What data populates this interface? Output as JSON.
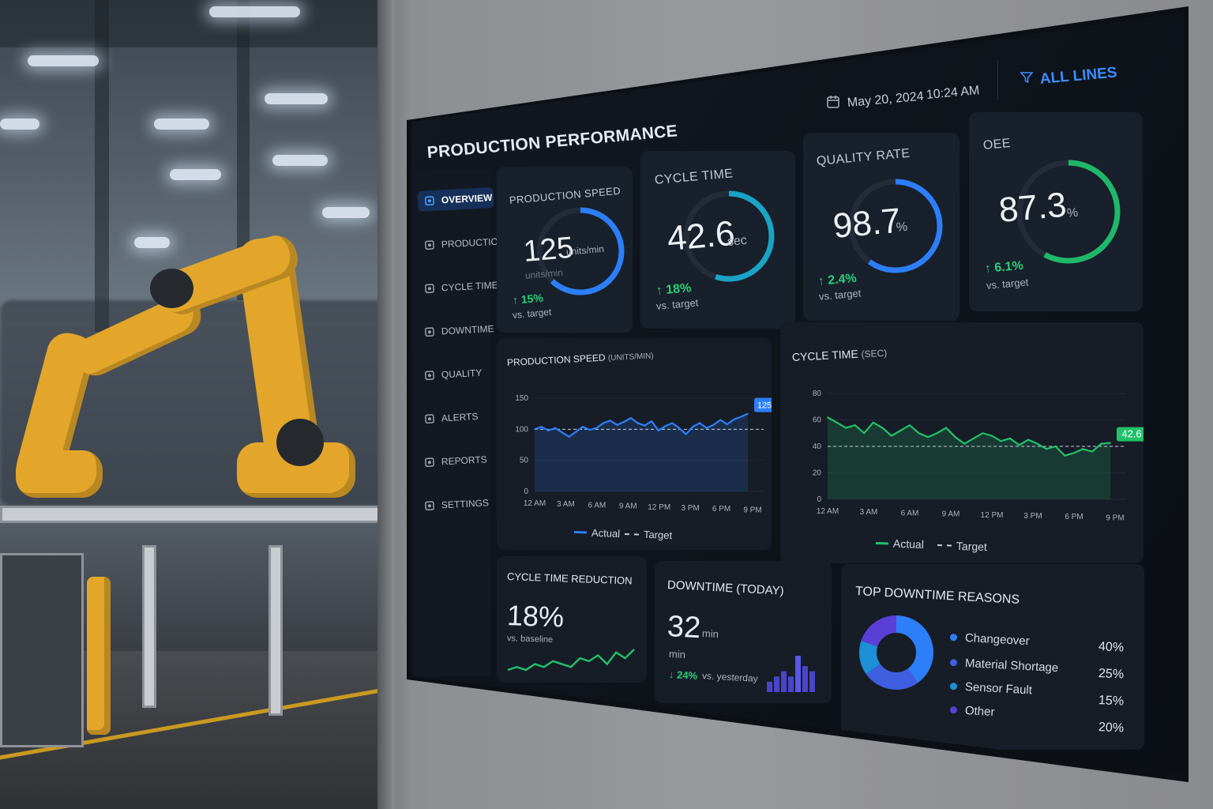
{
  "dashboard": {
    "title": "PRODUCTION PERFORMANCE",
    "date": "May 20, 2024",
    "time": "10:24 AM",
    "filter_label": "ALL LINES",
    "icons": {
      "calendar": "calendar-icon",
      "filter": "filter-icon"
    }
  },
  "sidebar": {
    "items": [
      {
        "label": "OVERVIEW",
        "icon": "grid-icon",
        "active": true
      },
      {
        "label": "PRODUCTION",
        "icon": "factory-icon",
        "active": false
      },
      {
        "label": "CYCLE TIME",
        "icon": "refresh-icon",
        "active": false
      },
      {
        "label": "DOWNTIME",
        "icon": "clock-icon",
        "active": false
      },
      {
        "label": "QUALITY",
        "icon": "shield-icon",
        "active": false
      },
      {
        "label": "ALERTS",
        "icon": "warning-icon",
        "active": false
      },
      {
        "label": "REPORTS",
        "icon": "report-icon",
        "active": false
      },
      {
        "label": "SETTINGS",
        "icon": "gear-icon",
        "active": false
      }
    ]
  },
  "kpis": [
    {
      "label": "PRODUCTION SPEED",
      "value": "125",
      "unit": "units/min",
      "unit_below": "units/min",
      "delta": "↑ 15%",
      "vs": "vs. target",
      "gauge_fraction": 0.62,
      "color": "#2d7ff9"
    },
    {
      "label": "CYCLE TIME",
      "value": "42.6",
      "unit": "sec",
      "delta": "↑ 18%",
      "vs": "vs. target",
      "gauge_fraction": 0.55,
      "color": "#1aa3c4"
    },
    {
      "label": "QUALITY RATE",
      "value": "98.7",
      "unit": "%",
      "delta": "↑ 2.4%",
      "vs": "vs. target",
      "gauge_fraction": 0.6,
      "color": "#2d7ff9"
    },
    {
      "label": "OEE",
      "value": "87.3",
      "unit": "%",
      "delta": "↑ 6.1%",
      "vs": "vs. target",
      "gauge_fraction": 0.58,
      "color": "#1fb86b"
    }
  ],
  "chart_data": [
    {
      "type": "line",
      "title": "PRODUCTION SPEED",
      "unit_label": "(UNITS/MIN)",
      "x_ticks": [
        "12 AM",
        "3 AM",
        "6 AM",
        "9 AM",
        "12 PM",
        "3 PM",
        "6 PM",
        "9 PM"
      ],
      "y_ticks": [
        0,
        50,
        100,
        150
      ],
      "ylim": [
        0,
        150
      ],
      "target": 100,
      "end_label": "125",
      "series": [
        {
          "name": "Actual",
          "color": "#2d7ff9",
          "values": [
            100,
            104,
            98,
            102,
            95,
            88,
            96,
            104,
            99,
            102,
            110,
            114,
            107,
            112,
            118,
            110,
            106,
            113,
            98,
            105,
            110,
            102,
            92,
            104,
            110,
            102,
            107,
            115,
            108,
            116,
            120,
            125
          ]
        }
      ],
      "legend": [
        "Actual",
        "Target"
      ],
      "legend_position": "bottom"
    },
    {
      "type": "line",
      "title": "CYCLE TIME",
      "unit_label": "(SEC)",
      "x_ticks": [
        "12 AM",
        "3 AM",
        "6 AM",
        "9 AM",
        "12 PM",
        "3 PM",
        "6 PM",
        "9 PM"
      ],
      "y_ticks": [
        0,
        20,
        40,
        60,
        80
      ],
      "ylim": [
        0,
        80
      ],
      "target": 40,
      "end_label": "42.6",
      "series": [
        {
          "name": "Actual",
          "color": "#22c16b",
          "values": [
            62,
            58,
            54,
            56,
            50,
            58,
            54,
            48,
            52,
            56,
            50,
            47,
            50,
            54,
            47,
            42,
            46,
            50,
            48,
            44,
            46,
            41,
            45,
            42,
            38,
            40,
            33,
            35,
            38,
            36,
            42,
            42.6
          ]
        }
      ],
      "legend": [
        "Actual",
        "Target"
      ],
      "legend_position": "bottom"
    },
    {
      "type": "pie",
      "title": "TOP DOWNTIME REASONS",
      "categories": [
        "Changeover",
        "Material Shortage",
        "Sensor Fault",
        "Other"
      ],
      "values": [
        40,
        25,
        15,
        20
      ],
      "labels": [
        "40%",
        "25%",
        "15%",
        "20%"
      ],
      "colors": [
        "#2d7ff9",
        "#3f5fe0",
        "#1d8fd6",
        "#5a3fd6"
      ]
    }
  ],
  "cycle_reduction": {
    "title": "CYCLE TIME REDUCTION",
    "value": "18%",
    "sub": "vs. baseline",
    "spark": [
      3,
      4,
      3,
      5,
      4,
      6,
      5,
      4,
      7,
      6,
      8,
      5,
      9,
      7,
      10
    ]
  },
  "downtime_today": {
    "title": "DOWNTIME (TODAY)",
    "value": "32",
    "unit": "min",
    "unit_below": "min",
    "delta": "↓ 24%",
    "vs": "vs. yesterday",
    "bars": [
      2,
      3,
      4,
      3,
      7,
      5,
      4
    ]
  }
}
